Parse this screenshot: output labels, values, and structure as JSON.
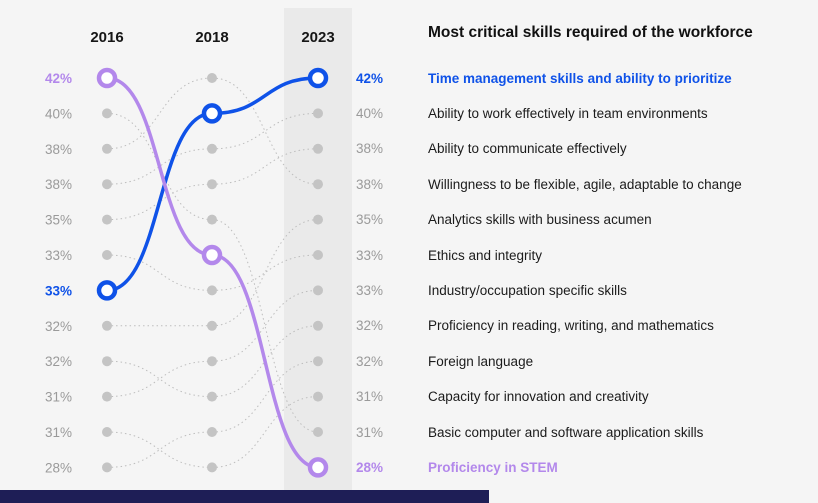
{
  "title": "Most critical skills required of the workforce",
  "colors": {
    "blue": "#0f52e8",
    "purple": "#b388eb",
    "gray_dot": "#c4c4c4",
    "gray_line": "#bdbdbd",
    "gray_text": "#9a9a9a",
    "text": "#161616",
    "band": "#eaeaea",
    "bg": "#f5f5f5",
    "footer": "#1e1e56",
    "circle_fill": "#ffffff"
  },
  "chart_data": {
    "type": "line",
    "subtype": "bump-rank-chart",
    "years": [
      "2016",
      "2018",
      "2023"
    ],
    "left_axis": [
      "42%",
      "40%",
      "38%",
      "38%",
      "35%",
      "33%",
      "33%",
      "32%",
      "32%",
      "31%",
      "31%",
      "28%"
    ],
    "left_axis_highlights": {
      "1": "purple",
      "7": "blue"
    },
    "rows": [
      {
        "pct": "42%",
        "skill": "Time management skills and ability to prioritize",
        "highlight": "blue"
      },
      {
        "pct": "40%",
        "skill": "Ability to work effectively in team environments"
      },
      {
        "pct": "38%",
        "skill": "Ability to communicate effectively"
      },
      {
        "pct": "38%",
        "skill": "Willingness to be flexible, agile, adaptable to change"
      },
      {
        "pct": "35%",
        "skill": "Analytics skills with business acumen"
      },
      {
        "pct": "33%",
        "skill": "Ethics and integrity"
      },
      {
        "pct": "33%",
        "skill": "Industry/occupation specific skills"
      },
      {
        "pct": "32%",
        "skill": "Proficiency in reading, writing, and mathematics"
      },
      {
        "pct": "32%",
        "skill": "Foreign language"
      },
      {
        "pct": "31%",
        "skill": "Capacity for innovation and creativity"
      },
      {
        "pct": "31%",
        "skill": "Basic computer and software application skills"
      },
      {
        "pct": "28%",
        "skill": "Proficiency in STEM",
        "highlight": "purple"
      }
    ],
    "series": [
      {
        "name": "Time management skills and ability to prioritize",
        "color": "blue",
        "ranks": [
          7,
          2,
          1
        ]
      },
      {
        "name": "Proficiency in STEM",
        "color": "purple",
        "ranks": [
          1,
          6,
          12
        ]
      }
    ],
    "background_links": [
      [
        2,
        5,
        11
      ],
      [
        3,
        1,
        4
      ],
      [
        4,
        3,
        2
      ],
      [
        5,
        4,
        3
      ],
      [
        6,
        7,
        6
      ],
      [
        8,
        8,
        5
      ],
      [
        9,
        10,
        8
      ],
      [
        10,
        9,
        7
      ],
      [
        11,
        12,
        10
      ],
      [
        12,
        11,
        9
      ]
    ]
  }
}
